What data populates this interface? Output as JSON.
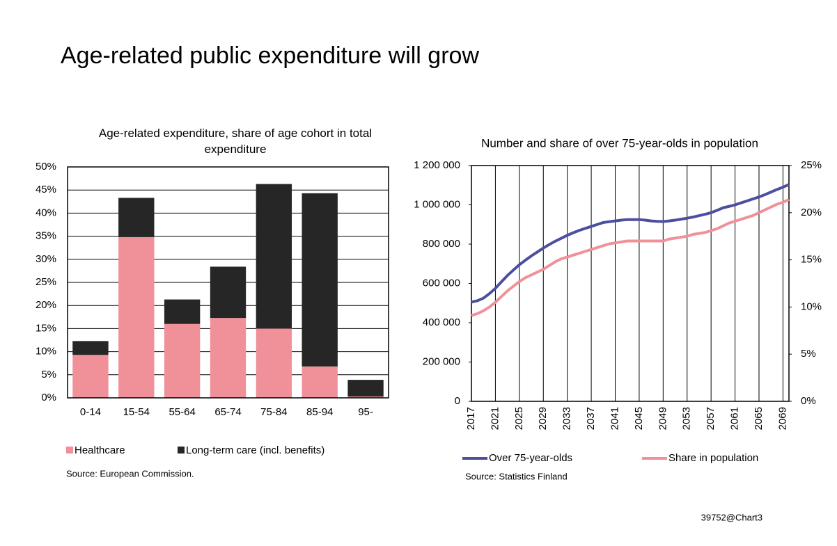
{
  "title": "Age-related public expenditure will grow",
  "footer": "39752@Chart3",
  "chart_data": [
    {
      "type": "bar",
      "stacked": true,
      "title": "Age-related expenditure, share of age cohort in total expenditure",
      "source": "Source:  European  Commission.",
      "categories": [
        "0-14",
        "15-54",
        "55-64",
        "65-74",
        "75-84",
        "85-94",
        "95-"
      ],
      "series": [
        {
          "name": "Healthcare",
          "color": "#f0919a",
          "values": [
            9.3,
            34.8,
            16,
            17.3,
            15,
            6.8,
            0.3
          ]
        },
        {
          "name": "Long-term care (incl. benefits)",
          "color": "#262626",
          "values": [
            3.0,
            8.5,
            5.3,
            11.1,
            31.3,
            37.5,
            3.6
          ]
        }
      ],
      "ylim": [
        0,
        50
      ],
      "yticks": [
        {
          "value": 0,
          "label": "0%"
        },
        {
          "value": 5,
          "label": "5%"
        },
        {
          "value": 10,
          "label": "10%"
        },
        {
          "value": 15,
          "label": "15%"
        },
        {
          "value": 20,
          "label": "20%"
        },
        {
          "value": 25,
          "label": "25%"
        },
        {
          "value": 30,
          "label": "30%"
        },
        {
          "value": 35,
          "label": "35%"
        },
        {
          "value": 40,
          "label": "40%"
        },
        {
          "value": 45,
          "label": "45%"
        },
        {
          "value": 50,
          "label": "50%"
        }
      ],
      "grid": true,
      "legend": "bottom"
    },
    {
      "type": "line",
      "title": "Number and share of over 75-year-olds in population",
      "source": "Source:  Statistics Finland",
      "x": [
        2017,
        2018,
        2019,
        2020,
        2021,
        2022,
        2023,
        2024,
        2025,
        2026,
        2027,
        2028,
        2029,
        2030,
        2031,
        2032,
        2033,
        2034,
        2035,
        2036,
        2037,
        2038,
        2039,
        2040,
        2041,
        2042,
        2043,
        2044,
        2045,
        2046,
        2047,
        2048,
        2049,
        2050,
        2051,
        2052,
        2053,
        2054,
        2055,
        2056,
        2057,
        2058,
        2059,
        2060,
        2061,
        2062,
        2063,
        2064,
        2065,
        2066,
        2067,
        2068,
        2069,
        2070
      ],
      "series": [
        {
          "name": "Over 75-year-olds",
          "color": "#4b4f9e",
          "values": [
            505000,
            512000,
            525000,
            548000,
            575000,
            608000,
            640000,
            668000,
            695000,
            718000,
            740000,
            760000,
            780000,
            798000,
            815000,
            830000,
            845000,
            858000,
            870000,
            880000,
            890000,
            900000,
            910000,
            914000,
            918000,
            922000,
            925000,
            925000,
            925000,
            922000,
            918000,
            916000,
            915000,
            918000,
            922000,
            927000,
            932000,
            938000,
            945000,
            952000,
            960000,
            972000,
            985000,
            992000,
            1000000,
            1010000,
            1020000,
            1030000,
            1040000,
            1052000,
            1065000,
            1078000,
            1090000,
            1103000
          ]
        },
        {
          "name": "Share in population",
          "color": "#f0919a",
          "axis": "y2",
          "values": [
            9.1,
            9.3,
            9.6,
            10.0,
            10.5,
            11.1,
            11.7,
            12.2,
            12.7,
            13.1,
            13.4,
            13.7,
            14.0,
            14.4,
            14.8,
            15.1,
            15.3,
            15.5,
            15.7,
            15.9,
            16.1,
            16.3,
            16.5,
            16.7,
            16.8,
            16.9,
            17.0,
            17.0,
            17.0,
            17.0,
            17.0,
            17.0,
            17.0,
            17.2,
            17.3,
            17.4,
            17.5,
            17.7,
            17.8,
            17.9,
            18.1,
            18.3,
            18.6,
            18.9,
            19.1,
            19.3,
            19.5,
            19.7,
            20.0,
            20.3,
            20.6,
            20.9,
            21.1,
            21.4
          ]
        }
      ],
      "xlim": [
        2017,
        2070
      ],
      "xticks": [
        2017,
        2021,
        2025,
        2029,
        2033,
        2037,
        2041,
        2045,
        2049,
        2053,
        2057,
        2061,
        2065,
        2069
      ],
      "ylim": [
        0,
        1200000
      ],
      "yticks": [
        0,
        {
          "value": 200000,
          "label": "200 000"
        },
        {
          "value": 400000,
          "label": "400 000"
        },
        {
          "value": 600000,
          "label": "600 000"
        },
        {
          "value": 800000,
          "label": "800 000"
        },
        {
          "value": 1000000,
          "label": "1 000 000"
        },
        {
          "value": 1200000,
          "label": "1 200 000"
        }
      ],
      "y2lim": [
        0,
        25
      ],
      "y2ticks": [
        {
          "value": 0,
          "label": "0%"
        },
        {
          "value": 5,
          "label": "5%"
        },
        {
          "value": 10,
          "label": "10%"
        },
        {
          "value": 15,
          "label": "15%"
        },
        {
          "value": 20,
          "label": "20%"
        },
        {
          "value": 25,
          "label": "25%"
        }
      ],
      "grid": "x",
      "legend": "bottom"
    }
  ]
}
